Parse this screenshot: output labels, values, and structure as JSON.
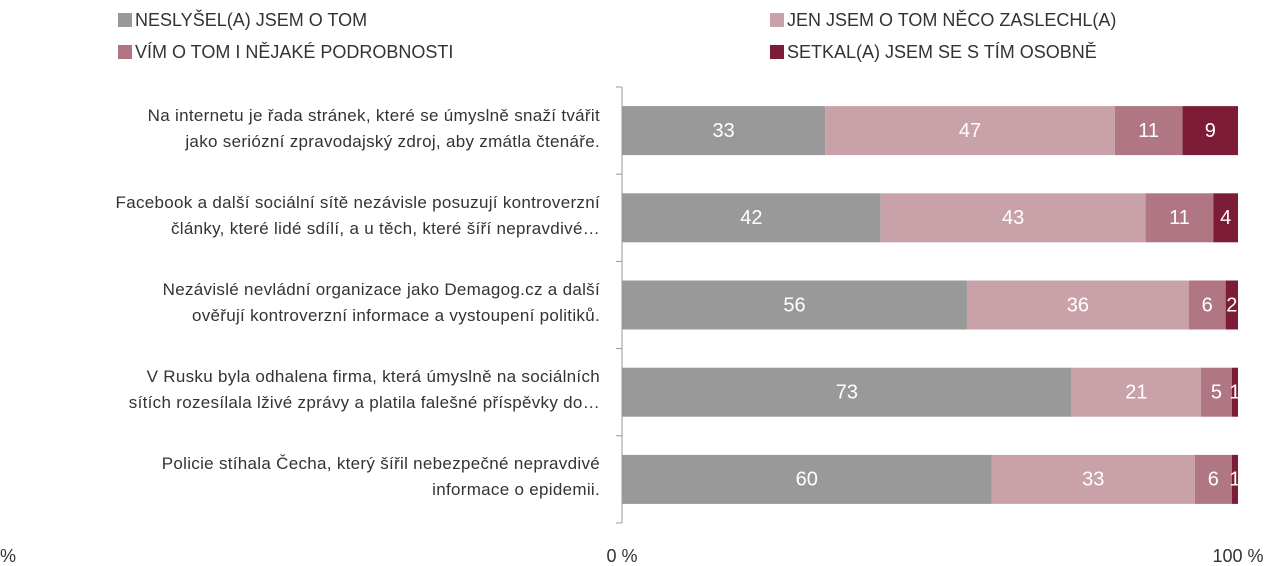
{
  "chart_data": {
    "type": "stacked_barh",
    "categories": [
      "Na internetu je řada stránek, které se úmyslně snaží tvářit\njako seriózní zpravodajský zdroj, aby zmátla čtenáře.",
      "Facebook a další sociální sítě nezávisle posuzují kontroverzní\nčlánky, které lidé sdílí, a u těch, které šíří nepravdivé…",
      "Nezávislé nevládní organizace jako Demagog.cz  a další\nověřují kontroverzní informace a vystoupení politiků.",
      "V Rusku byla odhalena firma, která úmyslně na sociálních\nsítích rozesílala lživé zprávy a platila falešné příspěvky do…",
      "Policie stíhala Čecha, který šířil nebezpečné nepravdivé\ninformace o epidemii."
    ],
    "series": [
      {
        "name": "NESLYŠEL(A) JSEM O TOM",
        "color": "#999999",
        "values": [
          33,
          42,
          56,
          73,
          60
        ]
      },
      {
        "name": "JEN JSEM O TOM NĚCO ZASLECHL(A)",
        "color": "#c9a1a9",
        "values": [
          47,
          43,
          36,
          21,
          33
        ]
      },
      {
        "name": "VÍM O TOM I NĚJAKÉ PODROBNOSTI",
        "color": "#b07683",
        "values": [
          11,
          11,
          6,
          5,
          6
        ]
      },
      {
        "name": "SETKAL(A) JSEM SE S TÍM OSOBNĚ",
        "color": "#7d1c36",
        "values": [
          9,
          4,
          2,
          1,
          1
        ]
      }
    ],
    "xlim": [
      0,
      100
    ],
    "xticks": [
      {
        "value": 0,
        "label": "0 %"
      },
      {
        "value": 100,
        "label": "100 %"
      }
    ],
    "xlabel": "%"
  }
}
